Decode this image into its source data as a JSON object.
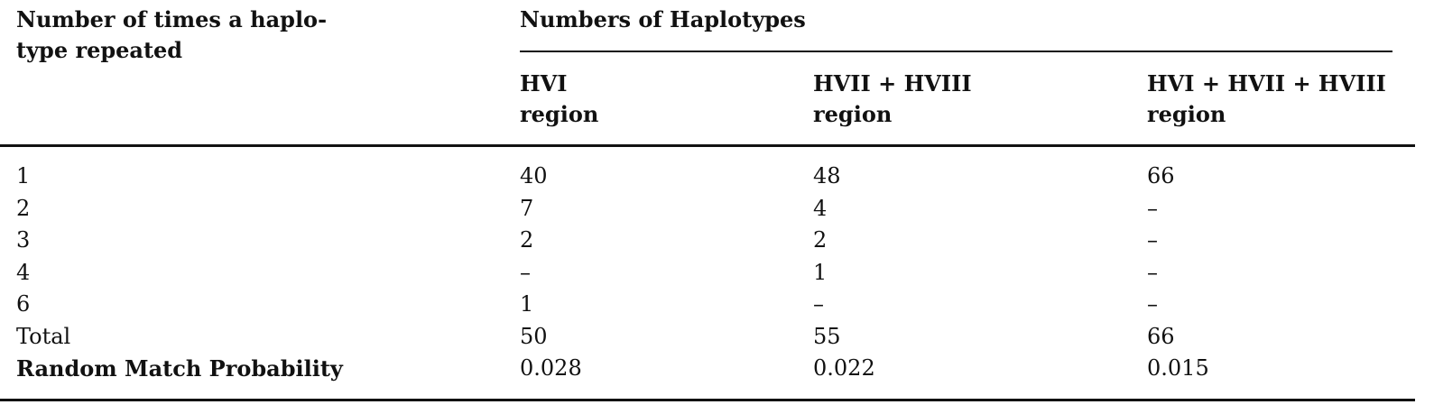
{
  "table": {
    "row_header": {
      "line1": "Number of times a haplo-",
      "line2": "type repeated"
    },
    "group_header": "Numbers of Haplotypes",
    "columns": [
      {
        "line1": "HVI",
        "line2": "region"
      },
      {
        "line1": "HVII + HVIII",
        "line2": "region"
      },
      {
        "line1": "HVI + HVII + HVIII",
        "line2": "region"
      }
    ],
    "rows": [
      {
        "label": "1",
        "values": [
          "40",
          "48",
          "66"
        ]
      },
      {
        "label": "2",
        "values": [
          "7",
          "4",
          "–"
        ]
      },
      {
        "label": "3",
        "values": [
          "2",
          "2",
          "–"
        ]
      },
      {
        "label": "4",
        "values": [
          "–",
          "1",
          "–"
        ]
      },
      {
        "label": "6",
        "values": [
          "1",
          "–",
          "–"
        ]
      },
      {
        "label": "Total",
        "values": [
          "50",
          "55",
          "66"
        ]
      },
      {
        "label": "Random Match Probability",
        "values": [
          "0.028",
          "0.022",
          "0.015"
        ],
        "bold_label": true
      }
    ]
  }
}
